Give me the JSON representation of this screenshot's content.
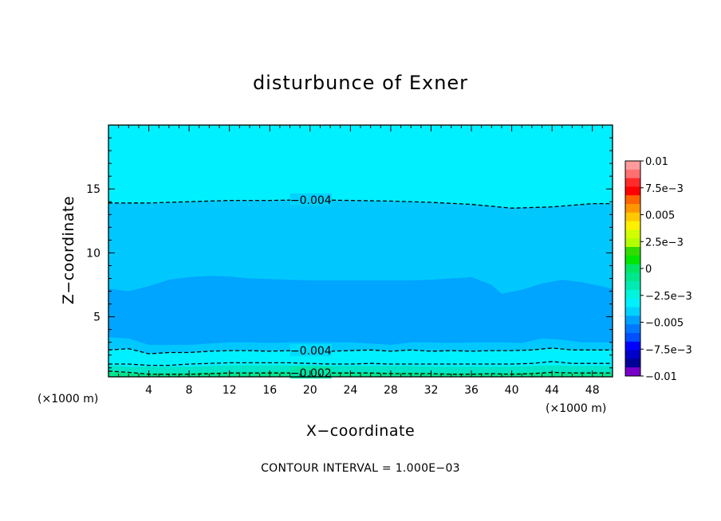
{
  "chart_data": {
    "type": "contour",
    "title": "disturbunce of Exner",
    "xlabel": "X−coordinate",
    "ylabel": "Z−coordinate",
    "x_unit": "(×1000 m)",
    "x_unit_right": "(×1000 m)",
    "footer": "CONTOUR INTERVAL = 1.000E−03",
    "xlim": [
      0,
      50
    ],
    "ylim": [
      0.3,
      20
    ],
    "x_ticks": [
      4,
      8,
      12,
      16,
      20,
      24,
      28,
      32,
      36,
      40,
      44,
      48
    ],
    "x_tick_labels": [
      "4",
      "8",
      "12",
      "16",
      "20",
      "24",
      "28",
      "32",
      "36",
      "40",
      "44",
      "48"
    ],
    "y_ticks": [
      5,
      10,
      15
    ],
    "y_tick_labels": [
      "5",
      "10",
      "15"
    ],
    "colorbar": {
      "labels": [
        "0.01",
        "7.5e−3",
        "0.005",
        "2.5e−3",
        "0",
        "−2.5e−3",
        "−0.005",
        "−7.5e−3",
        "−0.01"
      ],
      "colors": [
        "#ff9b9b",
        "#ff7070",
        "#ff2a2a",
        "#ff0000",
        "#ff6400",
        "#ff9600",
        "#ffc800",
        "#fff000",
        "#d2ff00",
        "#b4ff00",
        "#32dc00",
        "#00e600",
        "#00e664",
        "#00e68c",
        "#00ebb4",
        "#00f5dc",
        "#00f0ff",
        "#00d2ff",
        "#00a0ff",
        "#0078ff",
        "#0050ff",
        "#0000ff",
        "#0000c8",
        "#000096",
        "#7800c8"
      ]
    },
    "filled_bands": [
      {
        "color": "#00a5ff",
        "x": [
          0,
          2,
          4,
          6,
          8,
          10,
          12,
          14,
          16,
          18,
          20,
          22,
          24,
          26,
          28,
          30,
          32,
          34,
          36,
          38,
          39,
          41,
          43,
          45,
          47,
          50
        ],
        "upper": [
          7.2,
          7.0,
          7.4,
          7.9,
          8.1,
          8.2,
          8.15,
          8.0,
          7.95,
          7.9,
          7.85,
          7.85,
          7.85,
          7.85,
          7.85,
          7.85,
          7.9,
          8.0,
          8.1,
          7.5,
          6.8,
          7.1,
          7.6,
          7.9,
          7.7,
          7.2
        ],
        "lower": [
          3.4,
          3.3,
          2.8,
          2.8,
          2.8,
          2.9,
          3.0,
          3.0,
          2.95,
          3.0,
          3.0,
          3.0,
          3.0,
          2.9,
          2.8,
          3.0,
          3.0,
          2.95,
          3.0,
          3.0,
          3.0,
          2.95,
          3.3,
          3.2,
          3.0,
          3.0
        ]
      },
      {
        "color": "#00f0ff",
        "boundary_x": [
          0,
          2,
          4,
          6,
          8,
          10,
          12,
          14,
          16,
          18,
          20,
          22,
          24,
          26,
          28,
          30,
          32,
          34,
          36,
          38,
          40,
          42,
          44,
          46,
          48,
          50
        ],
        "boundary_y": [
          1.9,
          1.8,
          1.8,
          1.85,
          1.9,
          1.95,
          2.0,
          2.0,
          2.0,
          1.95,
          1.9,
          1.9,
          1.85,
          1.9,
          1.9,
          1.85,
          1.85,
          1.85,
          1.85,
          1.85,
          1.85,
          1.9,
          2.0,
          1.95,
          1.9,
          1.9
        ]
      },
      {
        "color": "#00e6c8",
        "boundary_x": [
          0,
          2,
          4,
          6,
          8,
          10,
          12,
          14,
          16,
          18,
          20,
          22,
          24,
          26,
          28,
          30,
          32,
          34,
          36,
          38,
          40,
          42,
          44,
          46,
          48,
          50
        ],
        "boundary_y": [
          1.2,
          1.1,
          1.1,
          1.1,
          1.1,
          1.15,
          1.2,
          1.2,
          1.2,
          1.2,
          1.2,
          1.15,
          1.15,
          1.15,
          1.15,
          1.15,
          1.1,
          1.1,
          1.1,
          1.1,
          1.1,
          1.15,
          1.2,
          1.15,
          1.15,
          1.15
        ]
      },
      {
        "color": "#00e690",
        "boundary_x": [
          0,
          2,
          4,
          6,
          8,
          10,
          12,
          14,
          16,
          18,
          20,
          22,
          24,
          26,
          28,
          30,
          32,
          34,
          36,
          38,
          40,
          42,
          44,
          46,
          48,
          50
        ],
        "boundary_y": [
          0.7,
          0.65,
          0.6,
          0.6,
          0.6,
          0.65,
          0.65,
          0.65,
          0.7,
          0.7,
          0.7,
          0.7,
          0.65,
          0.65,
          0.65,
          0.65,
          0.6,
          0.6,
          0.6,
          0.6,
          0.6,
          0.65,
          0.65,
          0.65,
          0.65,
          0.65
        ]
      }
    ],
    "contours": [
      {
        "label": "−0.004",
        "label_x": 20,
        "x": [
          0,
          4,
          8,
          12,
          16,
          20,
          24,
          28,
          32,
          36,
          40,
          44,
          48,
          50
        ],
        "y": [
          13.9,
          13.9,
          14.0,
          14.1,
          14.1,
          14.15,
          14.1,
          14.05,
          13.95,
          13.8,
          13.5,
          13.6,
          13.85,
          13.85
        ]
      },
      {
        "label": "−0.004",
        "label_x": 20,
        "x": [
          0,
          2,
          4,
          6,
          8,
          10,
          12,
          14,
          16,
          18,
          20,
          22,
          24,
          26,
          28,
          30,
          32,
          34,
          36,
          38,
          40,
          42,
          44,
          46,
          48,
          50
        ],
        "y": [
          2.4,
          2.5,
          2.1,
          2.2,
          2.2,
          2.3,
          2.35,
          2.35,
          2.3,
          2.35,
          2.35,
          2.3,
          2.35,
          2.4,
          2.3,
          2.4,
          2.3,
          2.35,
          2.3,
          2.35,
          2.35,
          2.4,
          2.55,
          2.4,
          2.4,
          2.4
        ]
      },
      {
        "label": "",
        "label_x": null,
        "x": [
          0,
          2,
          4,
          6,
          8,
          10,
          12,
          14,
          16,
          18,
          20,
          22,
          24,
          26,
          28,
          30,
          32,
          34,
          36,
          38,
          40,
          42,
          44,
          46,
          48,
          50
        ],
        "y": [
          1.3,
          1.3,
          1.2,
          1.2,
          1.3,
          1.35,
          1.4,
          1.4,
          1.4,
          1.4,
          1.35,
          1.3,
          1.3,
          1.35,
          1.3,
          1.3,
          1.3,
          1.3,
          1.3,
          1.3,
          1.3,
          1.35,
          1.5,
          1.35,
          1.35,
          1.35
        ]
      },
      {
        "label": "−0.002",
        "label_x": 20,
        "x": [
          0,
          2,
          4,
          6,
          8,
          10,
          12,
          14,
          16,
          18,
          20,
          22,
          24,
          26,
          28,
          30,
          32,
          34,
          36,
          38,
          40,
          42,
          44,
          46,
          48,
          50
        ],
        "y": [
          0.75,
          0.65,
          0.5,
          0.5,
          0.5,
          0.55,
          0.6,
          0.6,
          0.6,
          0.6,
          0.6,
          0.6,
          0.6,
          0.6,
          0.55,
          0.55,
          0.55,
          0.5,
          0.5,
          0.55,
          0.5,
          0.55,
          0.65,
          0.6,
          0.6,
          0.6
        ]
      }
    ]
  }
}
